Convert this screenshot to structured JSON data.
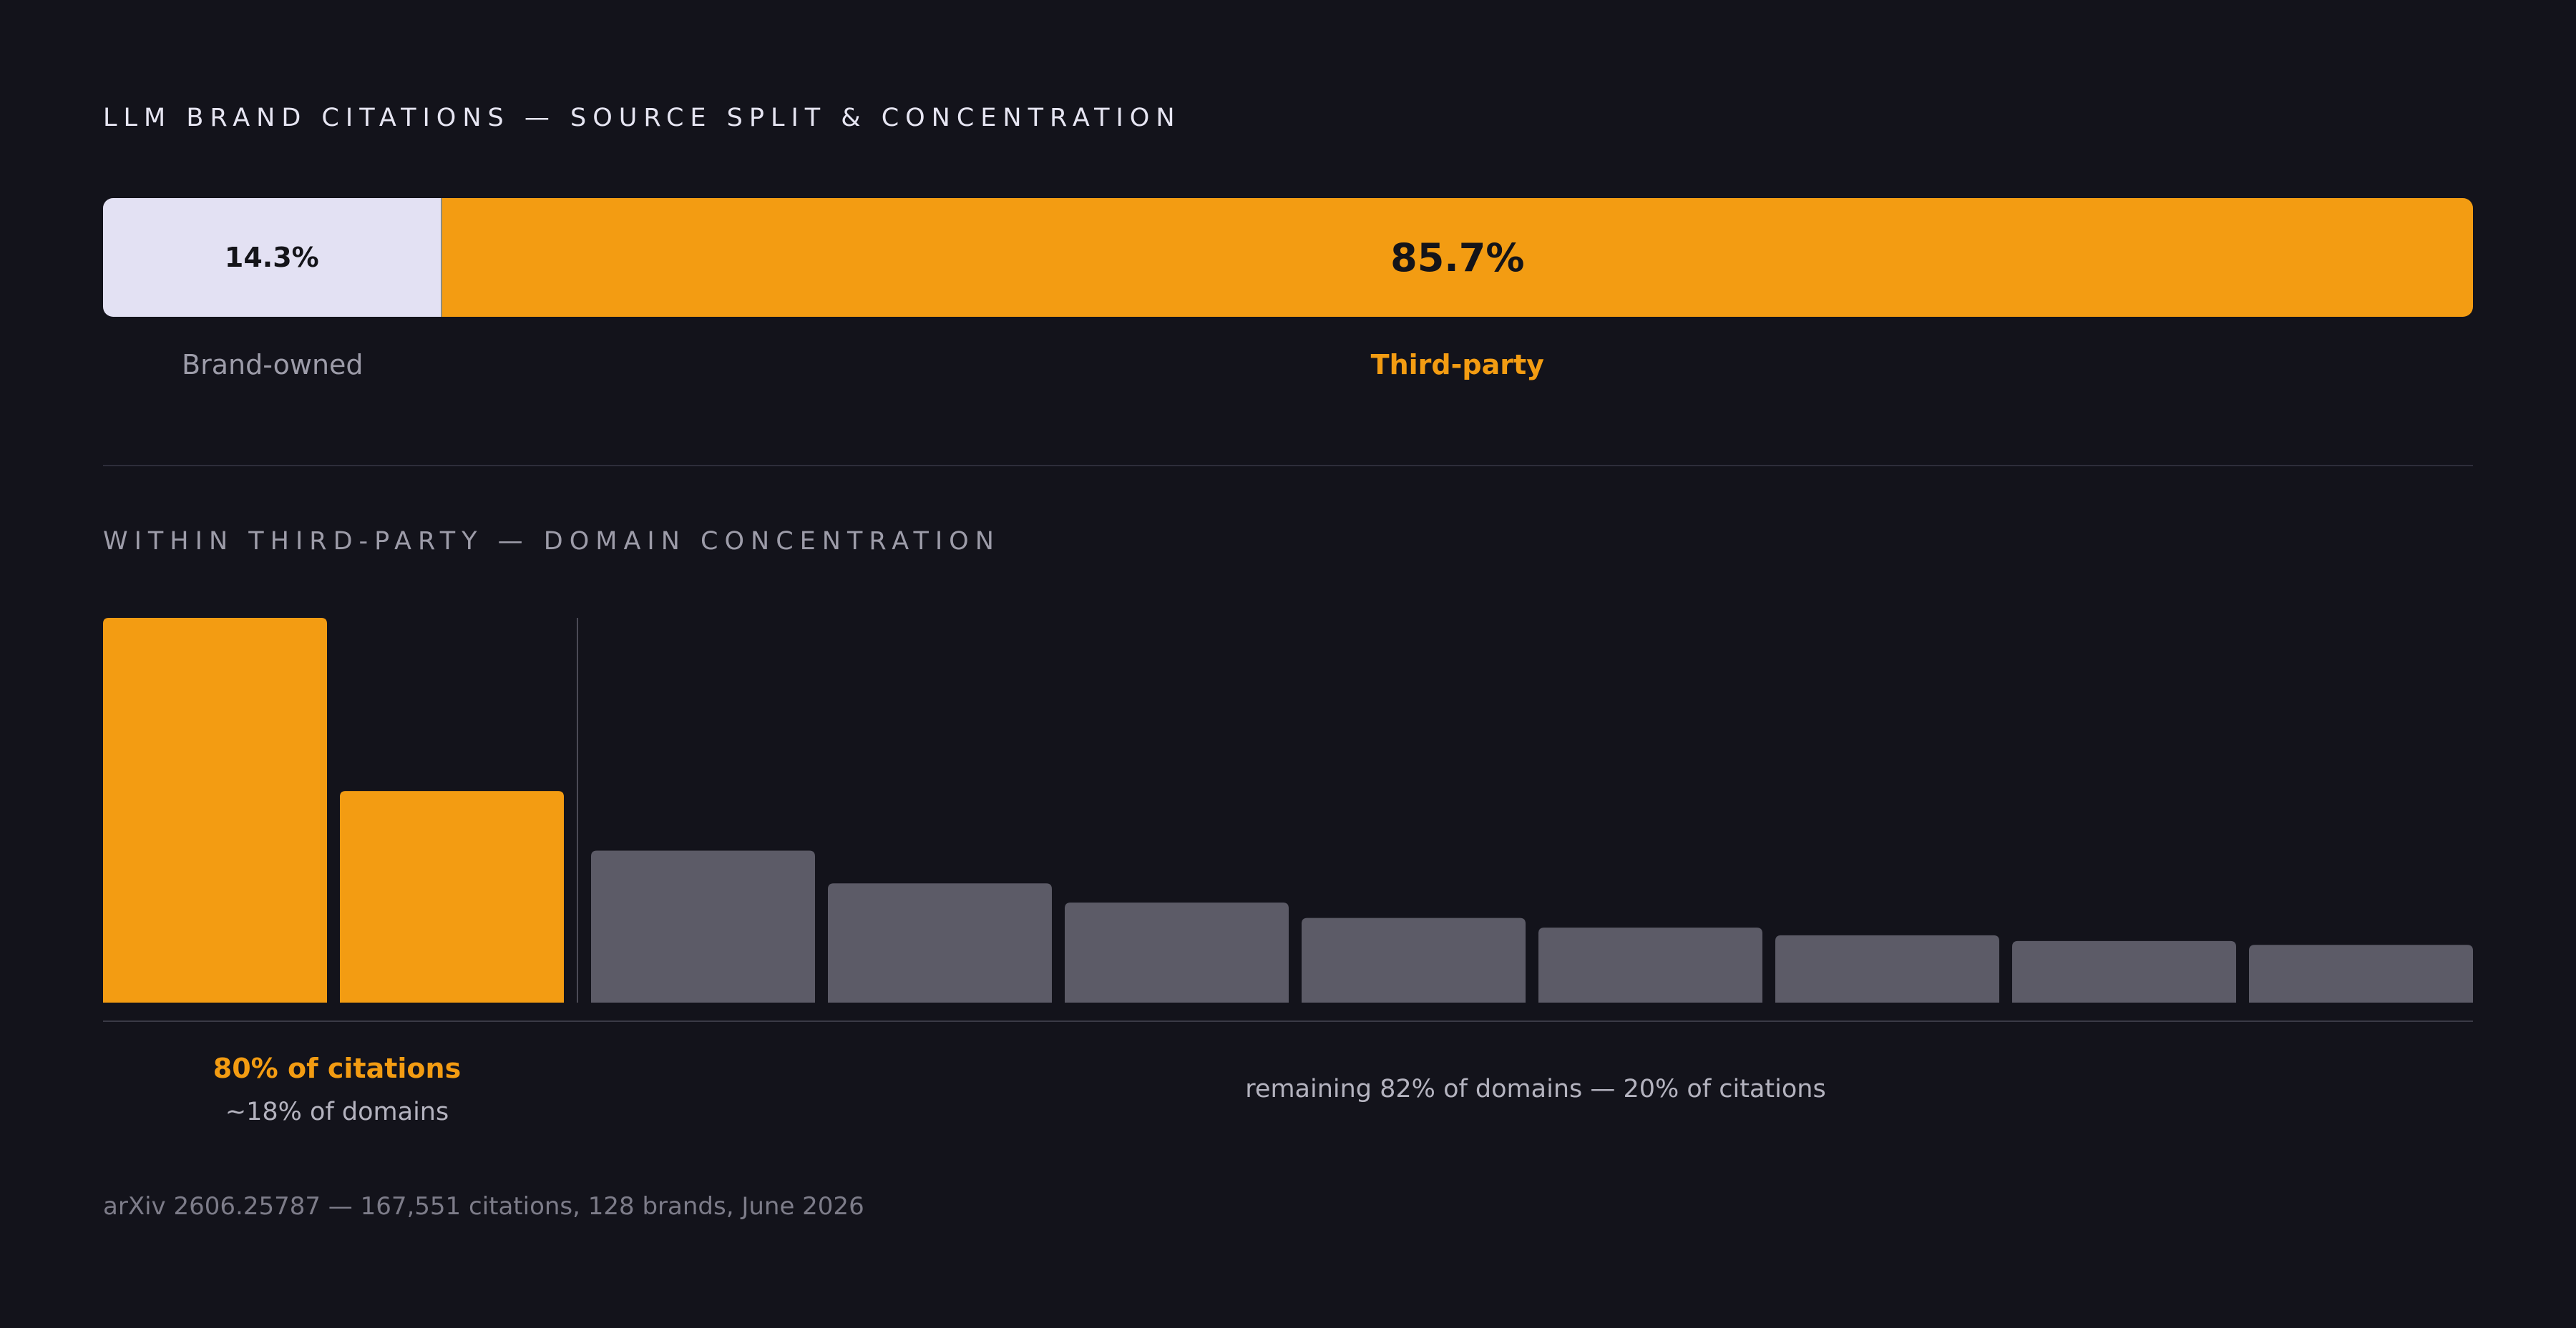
{
  "colors": {
    "background": "#13131b",
    "accent": "#f39c12",
    "brand_segment": "#e3e1f3",
    "muted_bar": "#5c5b67",
    "divider": "#2e2e3a"
  },
  "headings": {
    "split": "LLM BRAND CITATIONS — SOURCE SPLIT & CONCENTRATION",
    "concentration": "WITHIN THIRD-PARTY — DOMAIN CONCENTRATION"
  },
  "chart_data": [
    {
      "type": "bar",
      "orientation": "horizontal-stacked",
      "title": "LLM BRAND CITATIONS — SOURCE SPLIT & CONCENTRATION",
      "series": [
        {
          "name": "Brand-owned",
          "value": 14.3,
          "label": "14.3%"
        },
        {
          "name": "Third-party",
          "value": 85.7,
          "label": "85.7%"
        }
      ],
      "unit": "%"
    },
    {
      "type": "bar",
      "title": "WITHIN THIRD-PARTY — DOMAIN CONCENTRATION",
      "values": [
        100,
        55,
        39.5,
        31,
        26,
        22,
        19.5,
        17.5,
        16,
        15
      ],
      "highlighted_count": 2,
      "ylim": [
        0,
        100
      ],
      "grid": false,
      "groups": [
        {
          "name": "top",
          "label": "80% of citations",
          "sublabel": "~18% of domains"
        },
        {
          "name": "rest",
          "label": "remaining 82% of domains — 20% of citations"
        }
      ]
    }
  ],
  "annotations": {
    "top_citations": "80% of citations",
    "top_domains": "~18% of domains",
    "remaining": "remaining 82% of domains — 20% of citations"
  },
  "source_note": "arXiv 2606.25787 — 167,551 citations, 128 brands, June 2026"
}
